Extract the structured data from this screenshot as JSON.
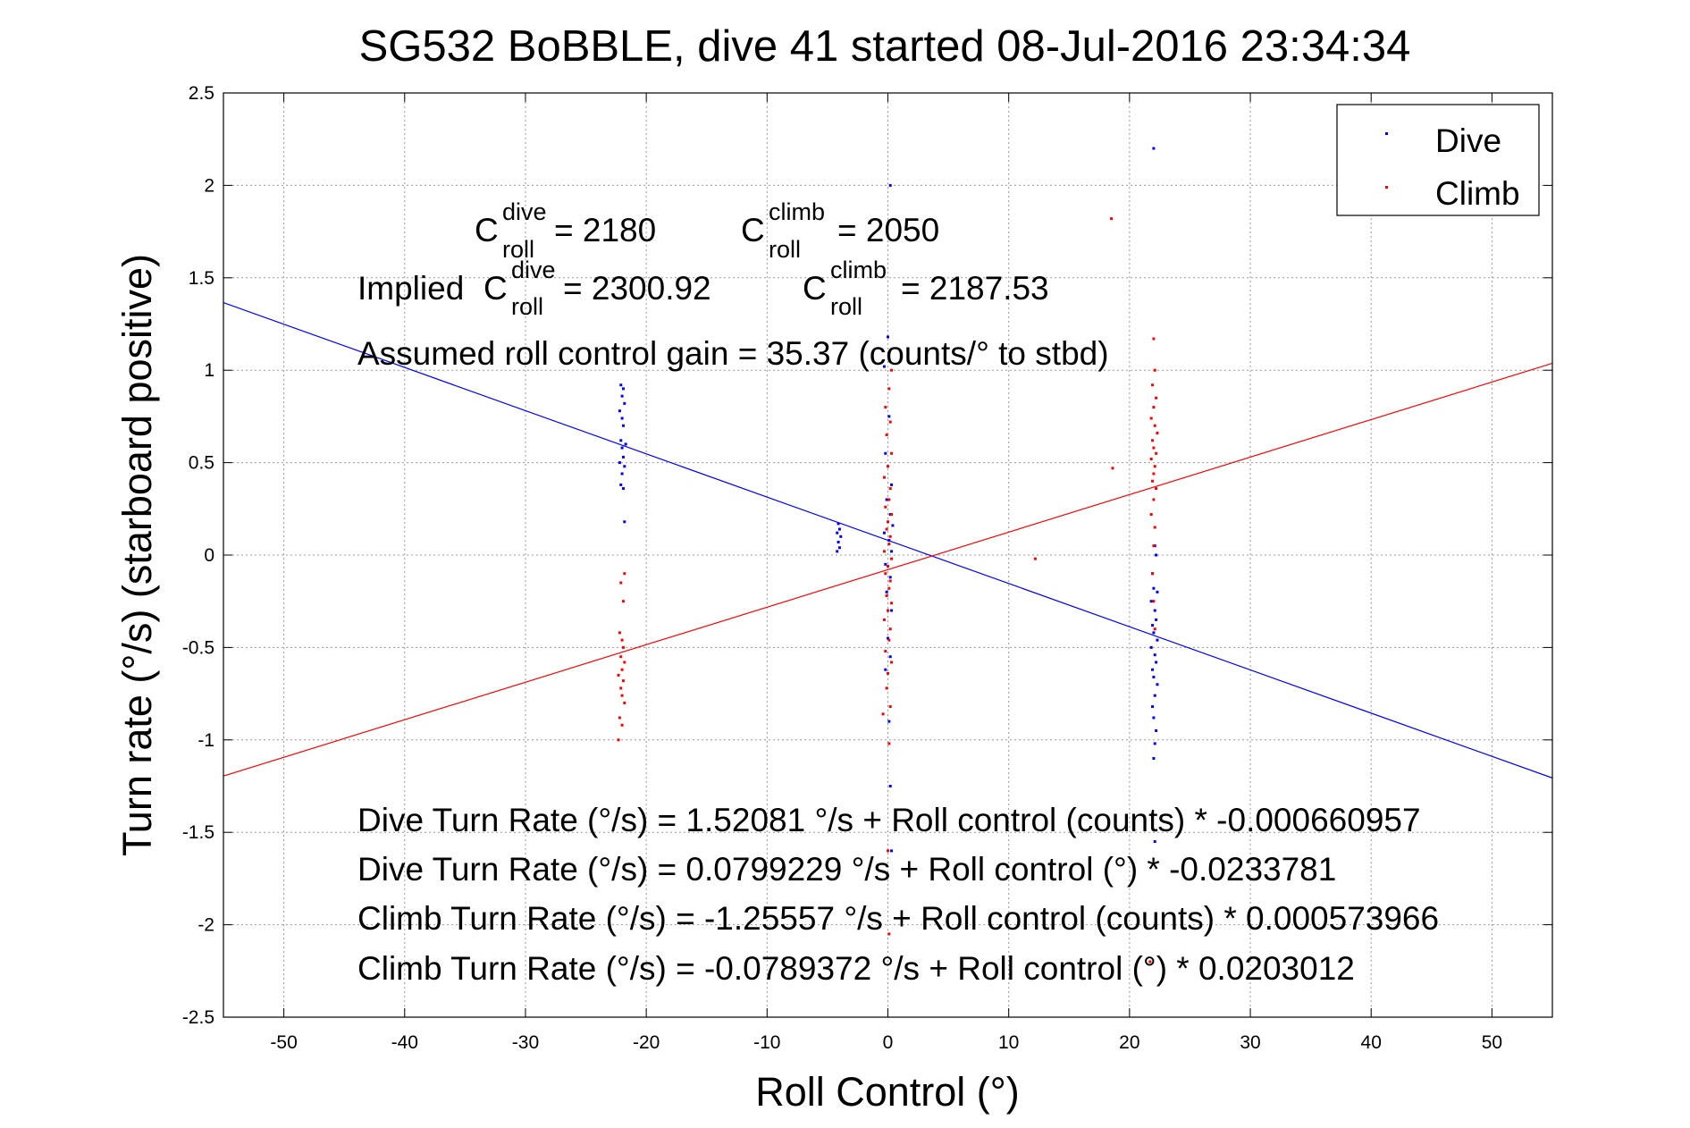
{
  "chart_data": {
    "type": "scatter",
    "title": "SG532 BoBBLE, dive 41 started 08-Jul-2016 23:34:34",
    "xlabel": "Roll Control (°)",
    "ylabel": "Turn rate (°/s) (starboard positive)",
    "xlim": [
      -55,
      55
    ],
    "ylim": [
      -2.5,
      2.5
    ],
    "xticks": [
      -50,
      -40,
      -30,
      -20,
      -10,
      0,
      10,
      20,
      30,
      40,
      50
    ],
    "yticks": [
      -2.5,
      -2,
      -1.5,
      -1,
      -0.5,
      0,
      0.5,
      1,
      1.5,
      2,
      2.5
    ],
    "xtick_labels": [
      "-50",
      "-40",
      "-30",
      "-20",
      "-10",
      "0",
      "10",
      "20",
      "30",
      "40",
      "50"
    ],
    "ytick_labels": [
      "-2.5",
      "-2",
      "-1.5",
      "-1",
      "-0.5",
      "0",
      "0.5",
      "1",
      "1.5",
      "2",
      "2.5"
    ],
    "grid": true,
    "legend_position": "top-right",
    "series": [
      {
        "name": "Dive",
        "color": "#0000ff",
        "points": [
          [
            -22.1,
            0.92
          ],
          [
            -21.9,
            0.9
          ],
          [
            -22.0,
            0.86
          ],
          [
            -21.8,
            0.82
          ],
          [
            -22.2,
            0.78
          ],
          [
            -22.0,
            0.74
          ],
          [
            -21.9,
            0.7
          ],
          [
            -22.1,
            0.62
          ],
          [
            -21.7,
            0.6
          ],
          [
            -22.0,
            0.58
          ],
          [
            -21.9,
            0.53
          ],
          [
            -22.2,
            0.5
          ],
          [
            -21.8,
            0.48
          ],
          [
            -22.0,
            0.44
          ],
          [
            -22.1,
            0.38
          ],
          [
            -21.9,
            0.36
          ],
          [
            -21.8,
            0.18
          ],
          [
            -4.1,
            0.17
          ],
          [
            -4.0,
            0.14
          ],
          [
            -4.2,
            0.12
          ],
          [
            -3.9,
            0.1
          ],
          [
            -4.1,
            0.07
          ],
          [
            -4.0,
            0.04
          ],
          [
            -4.2,
            0.02
          ],
          [
            0.2,
            2.0
          ],
          [
            0.0,
            1.18
          ],
          [
            -0.3,
            1.02
          ],
          [
            0.1,
            0.75
          ],
          [
            -0.2,
            0.55
          ],
          [
            0.3,
            0.38
          ],
          [
            -0.1,
            0.3
          ],
          [
            0.2,
            0.22
          ],
          [
            0.4,
            0.16
          ],
          [
            -0.3,
            0.12
          ],
          [
            0.1,
            0.08
          ],
          [
            0.3,
            0.02
          ],
          [
            -0.2,
            -0.05
          ],
          [
            0.2,
            -0.12
          ],
          [
            -0.1,
            -0.2
          ],
          [
            0.3,
            -0.3
          ],
          [
            0.0,
            -0.45
          ],
          [
            0.2,
            -0.55
          ],
          [
            -0.2,
            -0.62
          ],
          [
            0.1,
            -0.9
          ],
          [
            0.2,
            -1.25
          ],
          [
            0.3,
            -1.6
          ],
          [
            22.0,
            2.2
          ],
          [
            22.1,
            0.05
          ],
          [
            22.2,
            0.0
          ],
          [
            21.9,
            -0.1
          ],
          [
            22.0,
            -0.18
          ],
          [
            22.3,
            -0.2
          ],
          [
            21.8,
            -0.25
          ],
          [
            22.1,
            -0.3
          ],
          [
            22.2,
            -0.35
          ],
          [
            21.9,
            -0.38
          ],
          [
            22.0,
            -0.42
          ],
          [
            22.3,
            -0.46
          ],
          [
            21.8,
            -0.5
          ],
          [
            22.1,
            -0.54
          ],
          [
            22.2,
            -0.58
          ],
          [
            21.9,
            -0.62
          ],
          [
            22.0,
            -0.66
          ],
          [
            22.3,
            -0.7
          ],
          [
            22.1,
            -0.76
          ],
          [
            21.9,
            -0.82
          ],
          [
            22.0,
            -0.88
          ],
          [
            22.2,
            -0.95
          ],
          [
            22.1,
            -1.02
          ],
          [
            22.0,
            -1.1
          ],
          [
            22.1,
            -1.55
          ]
        ]
      },
      {
        "name": "Climb",
        "color": "#ff0000",
        "points": [
          [
            -21.8,
            -0.1
          ],
          [
            -22.1,
            -0.15
          ],
          [
            -21.9,
            -0.25
          ],
          [
            -22.2,
            -0.42
          ],
          [
            -22.0,
            -0.46
          ],
          [
            -21.9,
            -0.5
          ],
          [
            -22.1,
            -0.55
          ],
          [
            -21.8,
            -0.58
          ],
          [
            -22.0,
            -0.62
          ],
          [
            -22.3,
            -0.65
          ],
          [
            -21.9,
            -0.68
          ],
          [
            -22.1,
            -0.72
          ],
          [
            -22.0,
            -0.76
          ],
          [
            -21.8,
            -0.8
          ],
          [
            -22.2,
            -0.88
          ],
          [
            -22.0,
            -0.92
          ],
          [
            -22.3,
            -1.0
          ],
          [
            0.3,
            1.0
          ],
          [
            0.1,
            0.9
          ],
          [
            -0.2,
            0.8
          ],
          [
            0.2,
            0.72
          ],
          [
            -0.1,
            0.65
          ],
          [
            0.3,
            0.55
          ],
          [
            0.0,
            0.48
          ],
          [
            -0.3,
            0.42
          ],
          [
            0.2,
            0.36
          ],
          [
            0.1,
            0.3
          ],
          [
            -0.2,
            0.26
          ],
          [
            0.3,
            0.22
          ],
          [
            0.0,
            0.18
          ],
          [
            -0.1,
            0.14
          ],
          [
            0.2,
            0.1
          ],
          [
            0.1,
            0.06
          ],
          [
            -0.3,
            0.02
          ],
          [
            0.3,
            -0.02
          ],
          [
            0.0,
            -0.06
          ],
          [
            -0.2,
            -0.1
          ],
          [
            0.2,
            -0.14
          ],
          [
            0.1,
            -0.18
          ],
          [
            -0.1,
            -0.22
          ],
          [
            0.3,
            -0.26
          ],
          [
            0.0,
            -0.3
          ],
          [
            -0.3,
            -0.35
          ],
          [
            0.2,
            -0.4
          ],
          [
            0.1,
            -0.46
          ],
          [
            -0.2,
            -0.52
          ],
          [
            0.3,
            -0.58
          ],
          [
            0.0,
            -0.64
          ],
          [
            -0.1,
            -0.72
          ],
          [
            0.2,
            -0.82
          ],
          [
            -0.4,
            -0.86
          ],
          [
            0.1,
            -1.02
          ],
          [
            0.0,
            -1.6
          ],
          [
            0.1,
            -2.05
          ],
          [
            12.2,
            -0.02
          ],
          [
            18.5,
            1.82
          ],
          [
            18.6,
            0.47
          ],
          [
            22.0,
            1.17
          ],
          [
            22.1,
            1.0
          ],
          [
            21.9,
            0.92
          ],
          [
            22.2,
            0.85
          ],
          [
            22.0,
            0.8
          ],
          [
            21.8,
            0.74
          ],
          [
            22.1,
            0.7
          ],
          [
            22.3,
            0.66
          ],
          [
            21.9,
            0.62
          ],
          [
            22.0,
            0.58
          ],
          [
            22.2,
            0.55
          ],
          [
            21.8,
            0.52
          ],
          [
            22.1,
            0.48
          ],
          [
            22.0,
            0.44
          ],
          [
            21.9,
            0.4
          ],
          [
            22.2,
            0.36
          ],
          [
            22.0,
            0.3
          ],
          [
            21.8,
            0.22
          ],
          [
            22.1,
            0.15
          ],
          [
            22.0,
            0.05
          ],
          [
            21.9,
            -0.1
          ],
          [
            22.0,
            -0.25
          ],
          [
            22.1,
            -0.4
          ],
          [
            21.7,
            -2.2
          ]
        ]
      }
    ],
    "fit_lines": [
      {
        "name": "Dive fit",
        "color": "#0000ff",
        "intercept": 0.0799229,
        "slope": -0.0233781
      },
      {
        "name": "Climb fit",
        "color": "#ff0000",
        "intercept": -0.0789372,
        "slope": 0.0203012
      }
    ]
  },
  "legend": {
    "dive_label": "Dive",
    "climb_label": "Climb"
  },
  "annotations": {
    "c_base": "C",
    "sup_dive": "dive",
    "sup_climb": "climb",
    "sub_roll": "roll",
    "c_dive_value": " = 2180",
    "c_climb_value": " = 2050",
    "implied_prefix": "Implied ",
    "implied_dive_value": " = 2300.92",
    "implied_climb_value": " = 2187.53",
    "gain_line": "Assumed roll control gain = 35.37 (counts/° to stbd)",
    "eq1": "Dive Turn Rate (°/s) = 1.52081 °/s + Roll control (counts) * -0.000660957",
    "eq2": "Dive Turn Rate (°/s) = 0.0799229 °/s + Roll control (°) * -0.0233781",
    "eq3": "Climb Turn Rate (°/s) = -1.25557 °/s + Roll control (counts) * 0.000573966",
    "eq4": "Climb Turn Rate (°/s) = -0.0789372 °/s + Roll control (°) * 0.0203012"
  }
}
